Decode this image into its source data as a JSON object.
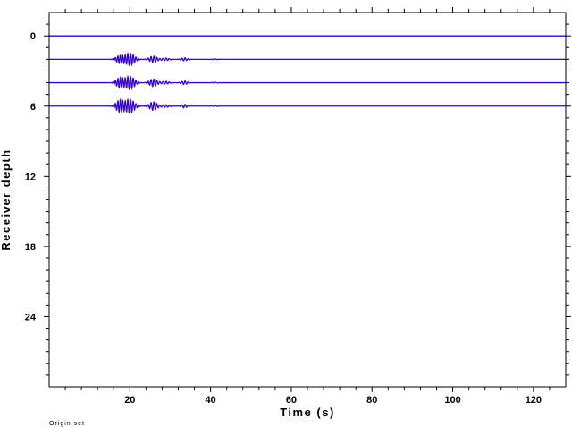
{
  "chart_data": {
    "type": "line",
    "xlabel": "Time (s)",
    "ylabel": "Receiver depth",
    "footnote": "Origin set",
    "xlim": [
      0,
      128
    ],
    "ylim": [
      30,
      -2
    ],
    "y_inverted": true,
    "x_ticks": [
      20,
      40,
      60,
      80,
      100,
      120
    ],
    "y_ticks": [
      0,
      6,
      12,
      18,
      24
    ],
    "x_tick_labels": [
      "20",
      "40",
      "60",
      "80",
      100,
      "120"
    ],
    "y_tick_labels": [
      "0",
      "6",
      "12",
      "18",
      "24"
    ],
    "trace_color": "#3300cc",
    "traces": [
      {
        "depth": 0,
        "arrivals": []
      },
      {
        "depth": 2,
        "arrivals": [
          {
            "t": 17.5,
            "amp": 0.55,
            "dur": 2.5,
            "freq": 1.6
          },
          {
            "t": 20.0,
            "amp": 0.85,
            "dur": 3.0,
            "freq": 1.5
          },
          {
            "t": 25.8,
            "amp": 0.45,
            "dur": 2.5,
            "freq": 1.4
          },
          {
            "t": 28.8,
            "amp": 0.18,
            "dur": 2.5,
            "freq": 1.3
          },
          {
            "t": 33.5,
            "amp": 0.22,
            "dur": 2.0,
            "freq": 1.3
          },
          {
            "t": 41.0,
            "amp": 0.06,
            "dur": 2.0,
            "freq": 1.0
          }
        ]
      },
      {
        "depth": 4,
        "arrivals": [
          {
            "t": 17.5,
            "amp": 0.7,
            "dur": 2.5,
            "freq": 1.6
          },
          {
            "t": 20.0,
            "amp": 0.9,
            "dur": 3.0,
            "freq": 1.5
          },
          {
            "t": 25.8,
            "amp": 0.55,
            "dur": 2.5,
            "freq": 1.4
          },
          {
            "t": 28.8,
            "amp": 0.2,
            "dur": 2.5,
            "freq": 1.3
          },
          {
            "t": 33.5,
            "amp": 0.25,
            "dur": 2.0,
            "freq": 1.3
          },
          {
            "t": 41.0,
            "amp": 0.07,
            "dur": 2.0,
            "freq": 1.0
          }
        ]
      },
      {
        "depth": 6,
        "arrivals": [
          {
            "t": 17.5,
            "amp": 0.85,
            "dur": 2.5,
            "freq": 1.6
          },
          {
            "t": 20.0,
            "amp": 0.95,
            "dur": 3.0,
            "freq": 1.5
          },
          {
            "t": 25.8,
            "amp": 0.6,
            "dur": 2.5,
            "freq": 1.4
          },
          {
            "t": 28.8,
            "amp": 0.2,
            "dur": 2.5,
            "freq": 1.3
          },
          {
            "t": 33.5,
            "amp": 0.25,
            "dur": 2.0,
            "freq": 1.3
          },
          {
            "t": 41.0,
            "amp": 0.08,
            "dur": 2.0,
            "freq": 1.0
          }
        ]
      }
    ]
  }
}
